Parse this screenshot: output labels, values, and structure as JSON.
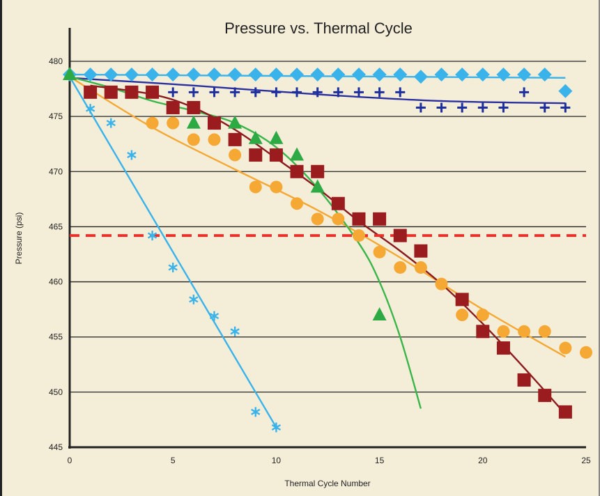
{
  "chart_data": {
    "type": "scatter",
    "title": "Pressure vs. Thermal Cycle",
    "xlabel": "Thermal Cycle Number",
    "ylabel": "Pressure (psi)",
    "xlim": [
      0,
      25
    ],
    "ylim": [
      445,
      482
    ],
    "x_ticks": [
      "0",
      "5",
      "10",
      "15",
      "20",
      "25"
    ],
    "y_ticks": [
      "445",
      "450",
      "455",
      "460",
      "465",
      "470",
      "475",
      "480"
    ],
    "grid": "horizontal",
    "threshold": {
      "y": 464.2,
      "color": "#e8312a",
      "style": "dashed"
    },
    "series": [
      {
        "marker": "diamond",
        "color": "#3ab3ea",
        "line_color": "#3ab3ea",
        "points": [
          [
            0,
            478.8
          ],
          [
            1,
            478.8
          ],
          [
            2,
            478.8
          ],
          [
            3,
            478.8
          ],
          [
            4,
            478.8
          ],
          [
            5,
            478.8
          ],
          [
            6,
            478.8
          ],
          [
            7,
            478.8
          ],
          [
            8,
            478.8
          ],
          [
            9,
            478.8
          ],
          [
            10,
            478.8
          ],
          [
            11,
            478.8
          ],
          [
            12,
            478.8
          ],
          [
            13,
            478.8
          ],
          [
            14,
            478.8
          ],
          [
            15,
            478.8
          ],
          [
            16,
            478.8
          ],
          [
            17,
            478.6
          ],
          [
            18,
            478.8
          ],
          [
            19,
            478.8
          ],
          [
            20,
            478.8
          ],
          [
            21,
            478.8
          ],
          [
            22,
            478.8
          ],
          [
            23,
            478.8
          ],
          [
            24,
            477.3
          ]
        ],
        "fit": [
          [
            0,
            478.8
          ],
          [
            24,
            478.5
          ]
        ]
      },
      {
        "marker": "plus",
        "color": "#1d2f9e",
        "line_color": "#2a2fa0",
        "points": [
          [
            1,
            477.2
          ],
          [
            2,
            477.2
          ],
          [
            3,
            477.2
          ],
          [
            4,
            477.2
          ],
          [
            5,
            477.2
          ],
          [
            6,
            477.2
          ],
          [
            7,
            477.2
          ],
          [
            8,
            477.2
          ],
          [
            9,
            477.2
          ],
          [
            10,
            477.2
          ],
          [
            11,
            477.2
          ],
          [
            12,
            477.2
          ],
          [
            13,
            477.2
          ],
          [
            14,
            477.2
          ],
          [
            15,
            477.2
          ],
          [
            16,
            477.2
          ],
          [
            17,
            475.8
          ],
          [
            18,
            475.8
          ],
          [
            19,
            475.8
          ],
          [
            20,
            475.8
          ],
          [
            21,
            475.8
          ],
          [
            22,
            477.2
          ],
          [
            23,
            475.8
          ],
          [
            24,
            475.8
          ]
        ],
        "fit": [
          [
            0,
            478.5
          ],
          [
            6,
            477.8
          ],
          [
            12,
            477.0
          ],
          [
            18,
            476.4
          ],
          [
            24,
            476.2
          ]
        ]
      },
      {
        "marker": "asterisk",
        "color": "#3ab3ea",
        "line_color": "#3ab3ea",
        "points": [
          [
            1,
            475.7
          ],
          [
            2,
            474.4
          ],
          [
            3,
            471.5
          ],
          [
            4,
            464.2
          ],
          [
            5,
            461.3
          ],
          [
            6,
            458.4
          ],
          [
            7,
            456.9
          ],
          [
            8,
            455.5
          ],
          [
            9,
            448.2
          ],
          [
            10,
            446.8
          ]
        ],
        "fit": [
          [
            0,
            478.6
          ],
          [
            10,
            446.8
          ]
        ]
      },
      {
        "marker": "circle",
        "color": "#f5a833",
        "line_color": "#f5a833",
        "points": [
          [
            4,
            474.4
          ],
          [
            5,
            474.4
          ],
          [
            6,
            472.9
          ],
          [
            7,
            472.9
          ],
          [
            8,
            471.5
          ],
          [
            9,
            468.6
          ],
          [
            10,
            468.6
          ],
          [
            11,
            467.1
          ],
          [
            12,
            465.7
          ],
          [
            13,
            465.7
          ],
          [
            14,
            464.2
          ],
          [
            15,
            462.7
          ],
          [
            16,
            461.3
          ],
          [
            17,
            461.3
          ],
          [
            18,
            459.8
          ],
          [
            19,
            457.0
          ],
          [
            20,
            457.0
          ],
          [
            21,
            455.5
          ],
          [
            22,
            455.5
          ],
          [
            23,
            455.5
          ],
          [
            24,
            454.0
          ],
          [
            25,
            453.6
          ]
        ],
        "fit": [
          [
            0,
            478.6
          ],
          [
            4,
            474.0
          ],
          [
            8,
            470.2
          ],
          [
            12,
            466.5
          ],
          [
            16,
            462.2
          ],
          [
            20,
            457.5
          ],
          [
            24,
            453.2
          ]
        ]
      },
      {
        "marker": "triangle",
        "color": "#2eaa45",
        "line_color": "#3ab54a",
        "points": [
          [
            0,
            478.8
          ],
          [
            6,
            474.4
          ],
          [
            8,
            474.4
          ],
          [
            9,
            473.0
          ],
          [
            10,
            473.0
          ],
          [
            11,
            471.5
          ],
          [
            12,
            468.6
          ],
          [
            15,
            457.0
          ]
        ],
        "fit": [
          [
            0,
            478.6
          ],
          [
            2,
            477.6
          ],
          [
            4,
            476.4
          ],
          [
            6,
            475.5
          ],
          [
            8,
            474.4
          ],
          [
            10,
            472.2
          ],
          [
            12,
            468.5
          ],
          [
            14,
            463.5
          ],
          [
            15,
            460.0
          ],
          [
            16,
            455.0
          ],
          [
            17,
            448.5
          ]
        ]
      },
      {
        "marker": "square",
        "color": "#9b1c1f",
        "line_color": "#8b1a1f",
        "points": [
          [
            1,
            477.2
          ],
          [
            2,
            477.2
          ],
          [
            3,
            477.2
          ],
          [
            4,
            477.2
          ],
          [
            5,
            475.8
          ],
          [
            6,
            475.8
          ],
          [
            7,
            474.4
          ],
          [
            8,
            472.9
          ],
          [
            9,
            471.5
          ],
          [
            10,
            471.5
          ],
          [
            11,
            470.0
          ],
          [
            12,
            470.0
          ],
          [
            13,
            467.1
          ],
          [
            14,
            465.7
          ],
          [
            15,
            465.7
          ],
          [
            16,
            464.2
          ],
          [
            17,
            462.8
          ],
          [
            19,
            458.4
          ],
          [
            20,
            455.5
          ],
          [
            21,
            454.0
          ],
          [
            22,
            451.1
          ],
          [
            23,
            449.7
          ],
          [
            24,
            448.2
          ]
        ],
        "fit": [
          [
            1,
            477.8
          ],
          [
            4,
            477.0
          ],
          [
            6,
            475.8
          ],
          [
            8,
            473.8
          ],
          [
            10,
            471.2
          ],
          [
            12,
            468.5
          ],
          [
            14,
            465.5
          ],
          [
            16,
            462.8
          ],
          [
            18,
            459.8
          ],
          [
            20,
            456.2
          ],
          [
            22,
            452.2
          ],
          [
            24,
            448.0
          ]
        ]
      }
    ]
  }
}
